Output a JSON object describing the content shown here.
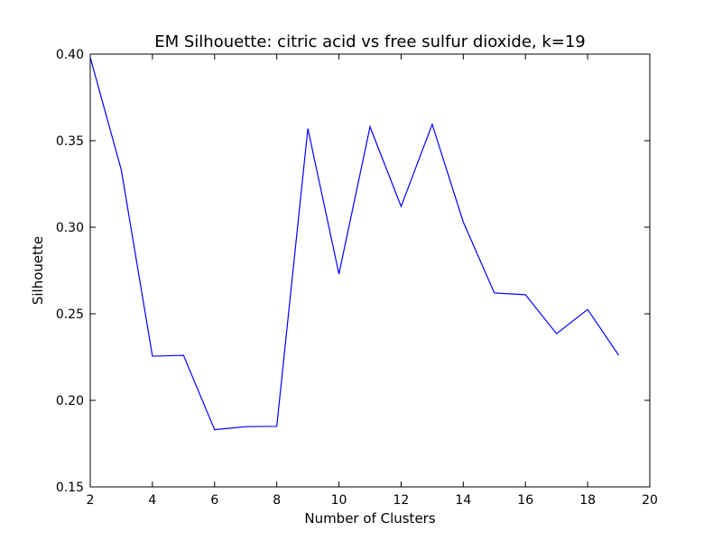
{
  "chart_data": {
    "type": "line",
    "title": "EM Silhouette: citric acid vs free sulfur dioxide, k=19",
    "xlabel": "Number of Clusters",
    "ylabel": "Silhouette",
    "xlim": [
      2,
      20
    ],
    "ylim": [
      0.15,
      0.4
    ],
    "x_ticks": [
      "2",
      "4",
      "6",
      "8",
      "10",
      "12",
      "14",
      "16",
      "18",
      "20"
    ],
    "y_ticks": [
      "0.15",
      "0.20",
      "0.25",
      "0.30",
      "0.35",
      "0.40"
    ],
    "grid": false,
    "legend": "none",
    "series": [
      {
        "color": "#0000ff",
        "x": [
          2,
          3,
          4,
          5,
          6,
          7,
          8,
          9,
          10,
          11,
          12,
          13,
          14,
          15,
          16,
          17,
          18,
          19
        ],
        "values": [
          0.398,
          0.333,
          0.2255,
          0.226,
          0.183,
          0.1848,
          0.185,
          0.357,
          0.273,
          0.358,
          0.312,
          0.3594,
          0.303,
          0.262,
          0.261,
          0.2385,
          0.2525,
          0.226
        ]
      }
    ]
  }
}
